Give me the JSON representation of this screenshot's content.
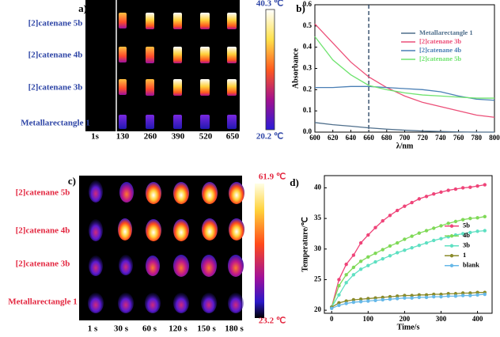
{
  "panel_a": {
    "label": "a)",
    "rows": [
      "[2]catenane 5b",
      "[2]catenane 4b",
      "[2]catenane 3b",
      "Metallarectangle 1"
    ],
    "columns": [
      "1s",
      "130",
      "260",
      "390",
      "520",
      "650"
    ],
    "scale_max": "40.3 ℃",
    "scale_min": "20.2 ℃"
  },
  "panel_c": {
    "label": "c)",
    "rows": [
      "[2]catenane 5b",
      "[2]catenane 4b",
      "[2]catenane 3b",
      "Metallarectangle 1"
    ],
    "columns": [
      "1 s",
      "30 s",
      "60 s",
      "120 s",
      "150 s",
      "180 s"
    ],
    "scale_max": "61.9 ℃",
    "scale_min": "23.2 ℃"
  },
  "chart_data": [
    {
      "type": "line",
      "panel_label": "b)",
      "x_label": "λ/nm",
      "y_label": "Absorbance",
      "x": [
        600,
        620,
        640,
        660,
        680,
        700,
        720,
        740,
        760,
        780,
        800
      ],
      "xlim": [
        600,
        800
      ],
      "ylim": [
        0,
        0.6
      ],
      "xticks": [
        600,
        620,
        640,
        660,
        680,
        700,
        720,
        740,
        760,
        780,
        800
      ],
      "yticks": [
        {
          "value": 0,
          "label": "0.0"
        },
        0.1,
        0.2,
        0.3,
        0.4,
        0.5,
        0.6
      ],
      "vline": 660,
      "markers": false,
      "legend": "upper right",
      "series": [
        {
          "name": "Metallarectangle 1",
          "color": "#4f6f8c",
          "values": [
            0.045,
            0.035,
            0.028,
            0.02,
            0.014,
            0.009,
            0.005,
            0.003,
            0.001,
            0,
            0
          ]
        },
        {
          "name": "[2]catenane 3b",
          "color": "#ec4f78",
          "values": [
            0.51,
            0.42,
            0.33,
            0.26,
            0.21,
            0.17,
            0.14,
            0.12,
            0.1,
            0.08,
            0.07
          ]
        },
        {
          "name": "[2]catenane 4b",
          "color": "#4a7fb5",
          "values": [
            0.21,
            0.21,
            0.215,
            0.215,
            0.21,
            0.205,
            0.2,
            0.19,
            0.17,
            0.155,
            0.15
          ]
        },
        {
          "name": "[2]catenane 5b",
          "color": "#6fe36f",
          "values": [
            0.45,
            0.34,
            0.27,
            0.22,
            0.2,
            0.185,
            0.175,
            0.17,
            0.165,
            0.16,
            0.16
          ]
        }
      ]
    },
    {
      "type": "line",
      "panel_label": "d)",
      "x_label": "Time/s",
      "y_label": "Temperature/℃",
      "x": [
        0,
        20,
        40,
        60,
        80,
        100,
        120,
        140,
        160,
        180,
        200,
        220,
        240,
        260,
        280,
        300,
        320,
        340,
        360,
        380,
        400,
        420
      ],
      "xlim": [
        -20,
        440
      ],
      "ylim": [
        19.5,
        42
      ],
      "xticks": [
        0,
        100,
        200,
        300,
        400
      ],
      "yticks": [
        20,
        25,
        30,
        35,
        40
      ],
      "markers": true,
      "legend": "center right",
      "series": [
        {
          "name": "5b",
          "color": "#ef4479",
          "values": [
            20.5,
            25,
            27.5,
            29,
            31,
            32.3,
            33.5,
            34.6,
            35.5,
            36.3,
            37,
            37.6,
            38.2,
            38.6,
            39,
            39.3,
            39.6,
            39.8,
            40,
            40.1,
            40.3,
            40.5
          ]
        },
        {
          "name": "4b",
          "color": "#7fd957",
          "values": [
            20.5,
            24,
            25.8,
            27,
            28,
            28.7,
            29.3,
            29.9,
            30.5,
            31,
            31.6,
            32.1,
            32.6,
            33,
            33.4,
            33.8,
            34.2,
            34.5,
            34.8,
            35,
            35.1,
            35.3
          ]
        },
        {
          "name": "3b",
          "color": "#5ee0c2",
          "values": [
            20.5,
            22.5,
            24.5,
            25.8,
            26.7,
            27.3,
            27.9,
            28.4,
            28.9,
            29.4,
            29.8,
            30.2,
            30.6,
            31,
            31.4,
            31.7,
            32,
            32.3,
            32.5,
            32.7,
            32.9,
            33
          ]
        },
        {
          "name": "1",
          "color": "#8a8a2a",
          "values": [
            20.5,
            21.2,
            21.5,
            21.7,
            21.8,
            21.9,
            22,
            22.1,
            22.2,
            22.3,
            22.4,
            22.4,
            22.5,
            22.5,
            22.6,
            22.6,
            22.7,
            22.7,
            22.8,
            22.8,
            22.9,
            22.9
          ]
        },
        {
          "name": "blank",
          "color": "#66b8e8",
          "values": [
            20.3,
            20.8,
            21.1,
            21.3,
            21.4,
            21.5,
            21.6,
            21.7,
            21.8,
            21.9,
            22,
            22,
            22.1,
            22.1,
            22.2,
            22.2,
            22.3,
            22.3,
            22.4,
            22.4,
            22.5,
            22.6
          ]
        }
      ]
    }
  ]
}
